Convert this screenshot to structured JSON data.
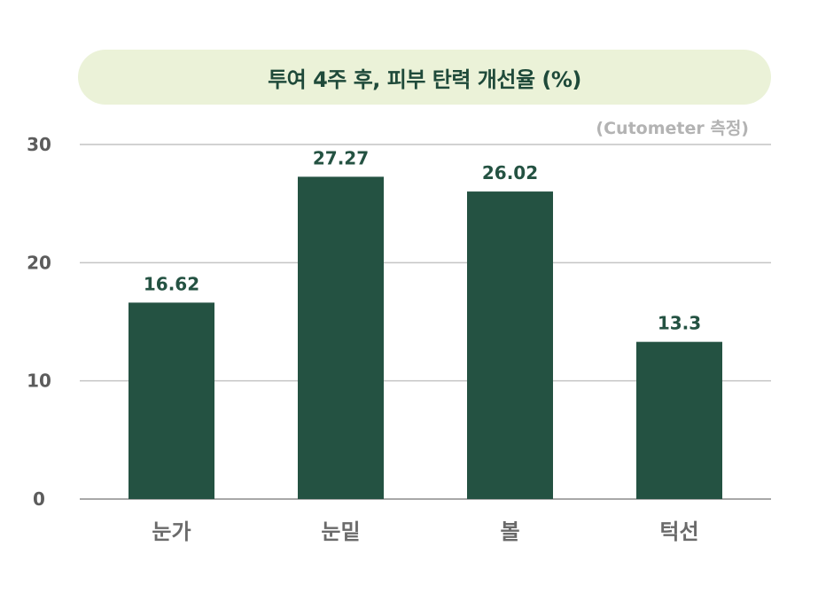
{
  "title": "투여 4주 후, 피부 탄력 개선율 (%)",
  "note": "(Cutometer 측정)",
  "colors": {
    "bar": "#245242",
    "title_bg": "#ebf2d8",
    "title_text": "#1f4a3a",
    "axis_text": "#5c5c5c",
    "category_text": "#6a6a6a",
    "grid": "#c4c4c4",
    "note_text": "#b3b3b3",
    "value_text": "#245242"
  },
  "chart_data": {
    "type": "bar",
    "title": "투여 4주 후, 피부 탄력 개선율 (%)",
    "categories": [
      "눈가",
      "눈밑",
      "볼",
      "턱선"
    ],
    "values": [
      16.62,
      27.27,
      26.02,
      13.3
    ],
    "value_labels": [
      "16.62",
      "27.27",
      "26.02",
      "13.3"
    ],
    "ylim": [
      0,
      30
    ],
    "yticks": [
      0,
      10,
      20,
      30
    ],
    "ytick_labels": [
      "0",
      "10",
      "20",
      "30"
    ],
    "grid": true,
    "legend": "none"
  }
}
